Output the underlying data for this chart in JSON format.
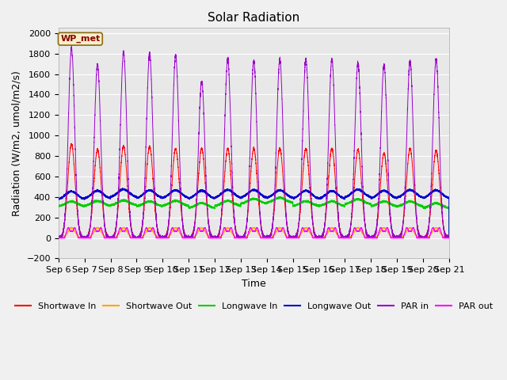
{
  "title": "Solar Radiation",
  "ylabel": "Radiation (W/m2, umol/m2/s)",
  "xlabel": "Time",
  "ylim": [
    -200,
    2050
  ],
  "yticks": [
    -200,
    0,
    200,
    400,
    600,
    800,
    1000,
    1200,
    1400,
    1600,
    1800,
    2000
  ],
  "start_day": 6,
  "end_day": 21,
  "n_days": 15,
  "wp_met_label": "WP_met",
  "series": {
    "shortwave_in": {
      "label": "Shortwave In",
      "color": "#ff0000"
    },
    "shortwave_out": {
      "label": "Shortwave Out",
      "color": "#ffa500"
    },
    "longwave_in": {
      "label": "Longwave In",
      "color": "#00cc00"
    },
    "longwave_out": {
      "label": "Longwave Out",
      "color": "#0000cc"
    },
    "par_in": {
      "label": "PAR in",
      "color": "#9900cc"
    },
    "par_out": {
      "label": "PAR out",
      "color": "#ff00ff"
    }
  },
  "plot_bg_color": "#e8e8e8",
  "grid_color": "#ffffff",
  "fig_bg_color": "#f0f0f0",
  "legend_fontsize": 8,
  "title_fontsize": 11,
  "axis_fontsize": 8
}
